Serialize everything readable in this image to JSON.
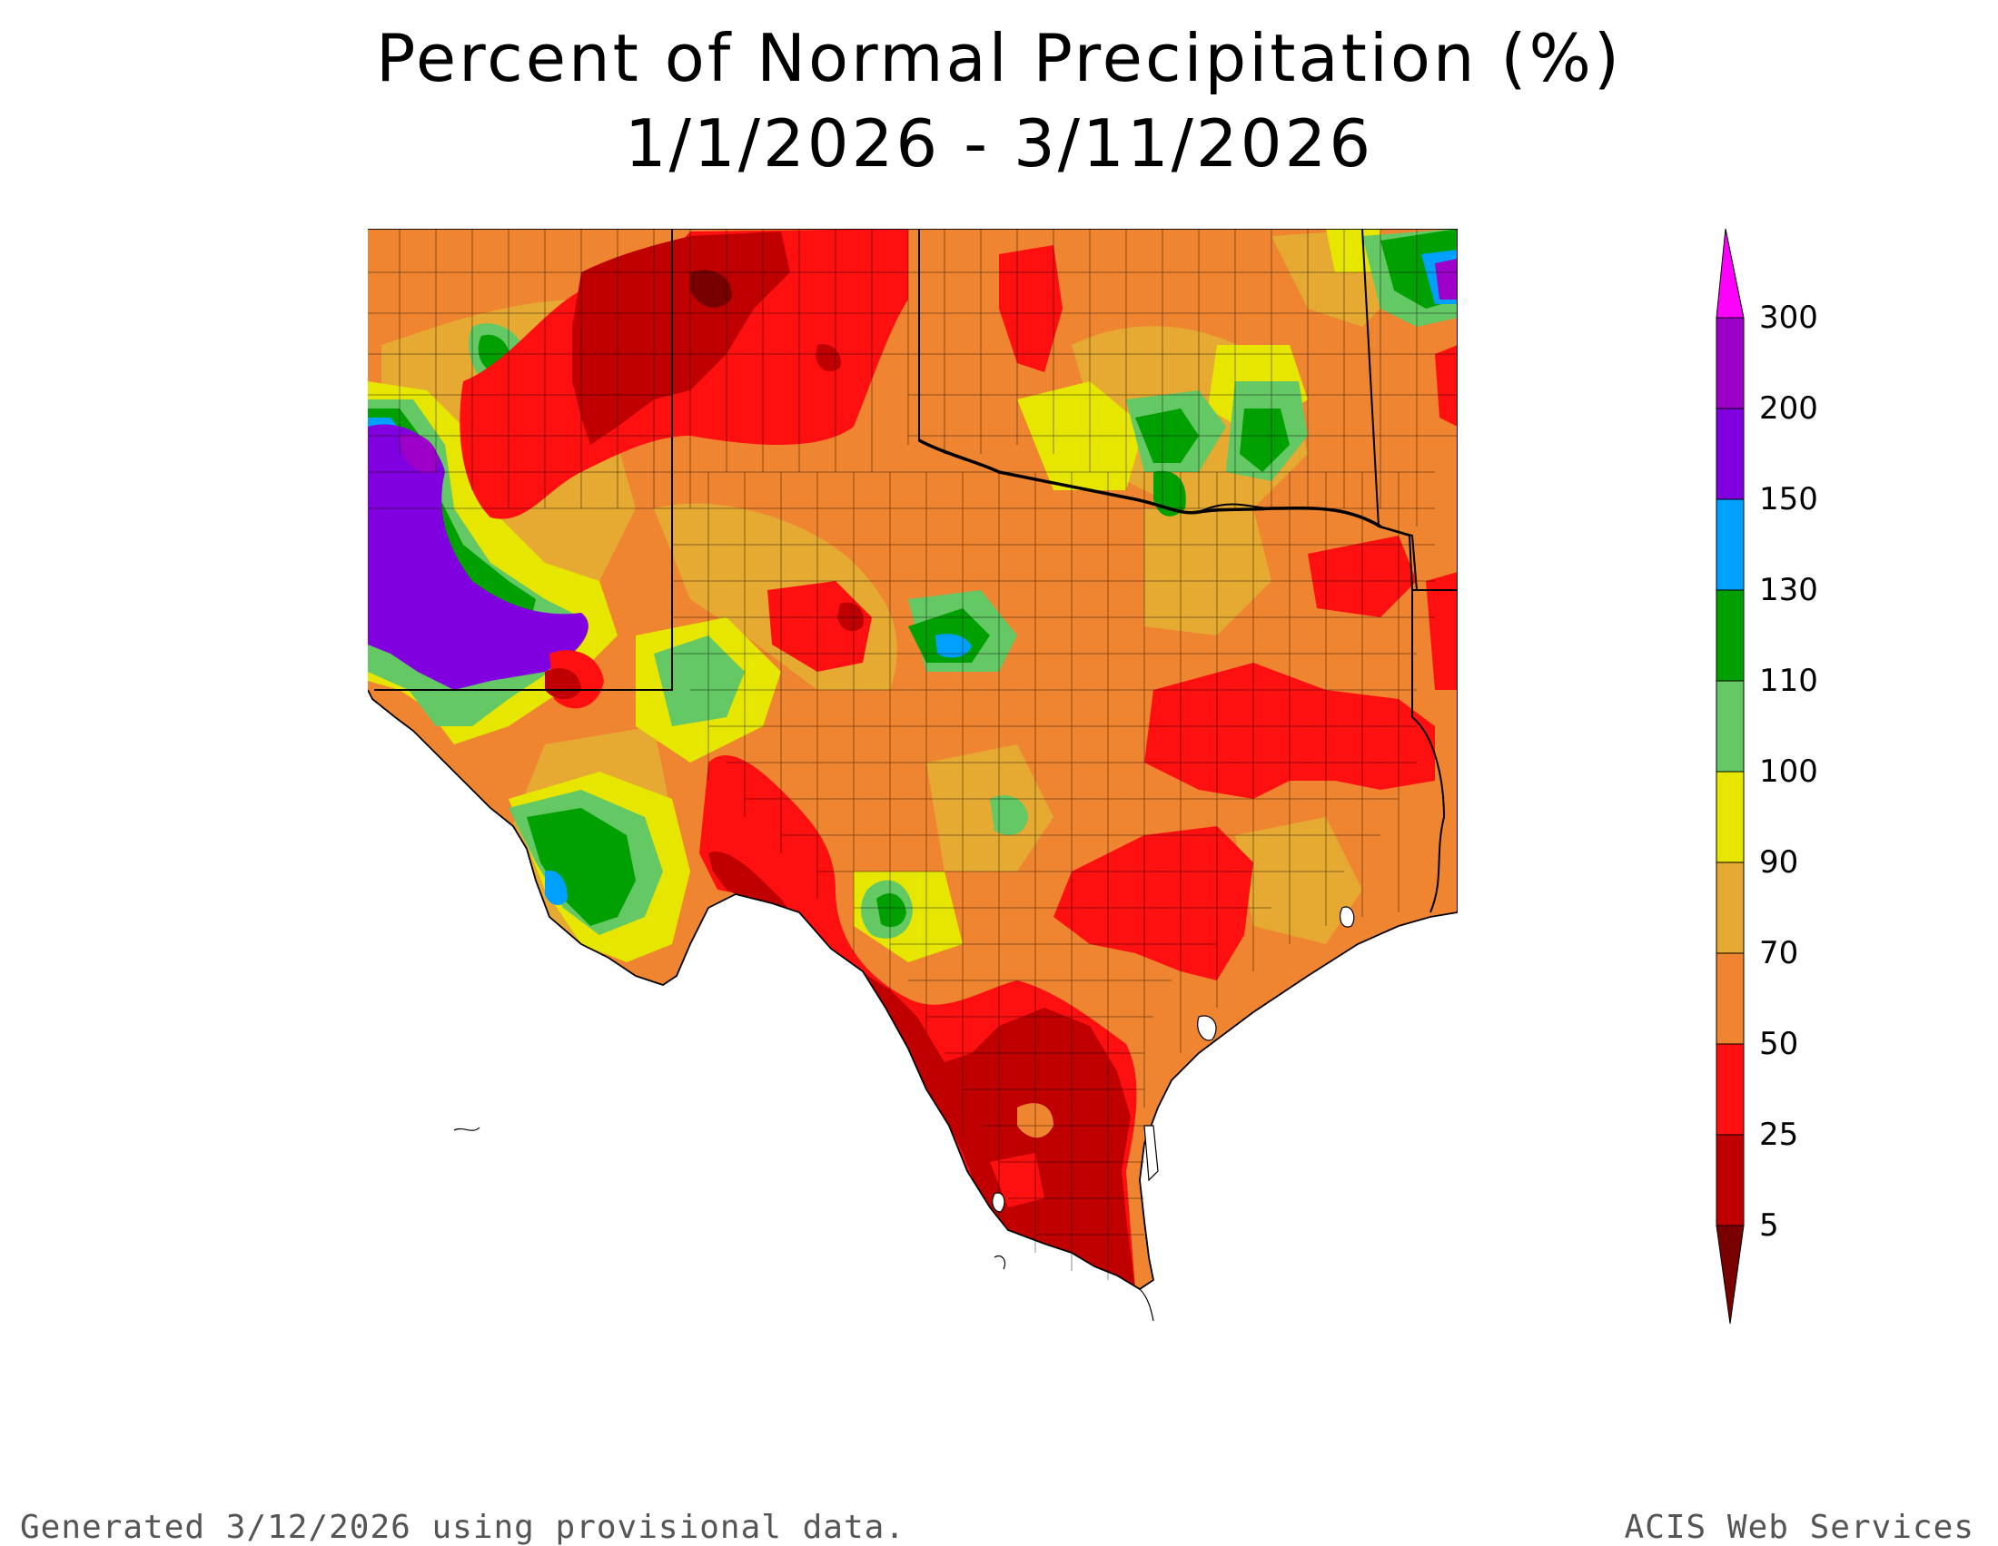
{
  "title": {
    "line1": "Percent of Normal Precipitation (%)",
    "line2": "1/1/2026 - 3/11/2026"
  },
  "legend": {
    "ticks": [
      "300",
      "200",
      "150",
      "130",
      "110",
      "100",
      "90",
      "70",
      "50",
      "25",
      "5"
    ],
    "colors": {
      "above_300": "#ff00ff",
      "200_300": "#9d00c8",
      "150_200": "#8000e0",
      "130_150": "#00a0ff",
      "110_130": "#00a000",
      "100_110": "#64c864",
      "90_100": "#e6e600",
      "70_90": "#e6aa32",
      "50_70": "#ef8530",
      "25_50": "#ff1010",
      "5_25": "#c00000",
      "below_5": "#780000"
    }
  },
  "footer": {
    "left": "Generated 3/12/2026  using provisional data.",
    "right": "ACIS Web Services"
  }
}
